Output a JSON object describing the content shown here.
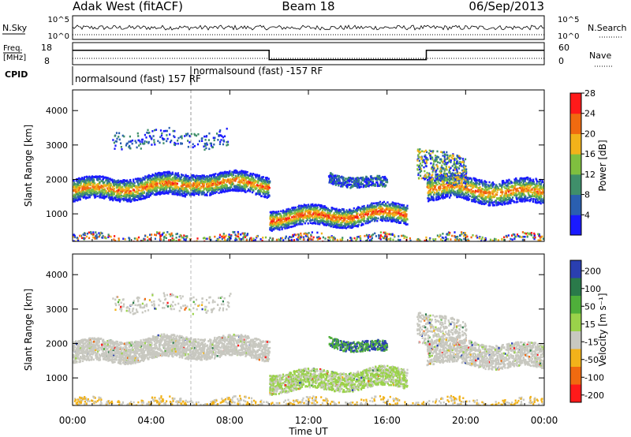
{
  "header": {
    "station": "Adak West (fitACF)",
    "beam": "Beam 18",
    "date": "06/Sep/2013"
  },
  "status_panels": {
    "nsky_label": "N.Sky",
    "nsky_ticks": [
      "10^5",
      "10^0"
    ],
    "nsearch_label": "N.Search",
    "nsearch_ticks": [
      "10^5",
      "10^0"
    ],
    "freq_label_1": "Freq.",
    "freq_label_2": "[MHz]",
    "freq_ticks": [
      "18",
      "8"
    ],
    "nave_label": "Nave",
    "nave_ticks": [
      "60",
      "0"
    ],
    "cpid_label": "CPID",
    "cpid_segments": [
      {
        "text": "normalsound (fast) 157 RF",
        "start_hour": 0
      },
      {
        "text": "normalsound (fast) -157 RF",
        "start_hour": 6
      }
    ],
    "freq_profile": [
      {
        "hour": 0,
        "value": 14.5
      },
      {
        "hour": 10,
        "value": 14.5
      },
      {
        "hour": 10,
        "value": 10.3
      },
      {
        "hour": 18,
        "value": 10.3
      },
      {
        "hour": 18,
        "value": 14.5
      },
      {
        "hour": 24,
        "value": 14.5
      }
    ]
  },
  "chart_data": [
    {
      "type": "heatmap",
      "name": "power",
      "ylabel": "Slant Range [km]",
      "yticks": [
        "1000",
        "2000",
        "3000",
        "4000"
      ],
      "ylim": [
        200,
        4600
      ],
      "xlim": [
        0,
        24
      ],
      "colorbar_label": "Power [dB]",
      "colorbar_ticks": [
        "4",
        "8",
        "12",
        "16",
        "20",
        "24",
        "28"
      ],
      "colorbar_colors": [
        "#1a1aff",
        "#2a5fb0",
        "#3f8f6a",
        "#7fbf3f",
        "#f2b21a",
        "#f06a10",
        "#ff1a1a"
      ],
      "features": [
        {
          "hours": [
            0,
            6
          ],
          "range_km": [
            1400,
            2100
          ],
          "peak_db": 24
        },
        {
          "hours": [
            6,
            10
          ],
          "range_km": [
            1600,
            2400
          ],
          "peak_db": 22
        },
        {
          "hours": [
            10,
            17
          ],
          "range_km": [
            600,
            1300
          ],
          "peak_db": 26
        },
        {
          "hours": [
            18,
            24
          ],
          "range_km": [
            1300,
            2300
          ],
          "peak_db": 20
        }
      ]
    },
    {
      "type": "heatmap",
      "name": "velocity",
      "ylabel": "Slant Range [km]",
      "yticks": [
        "1000",
        "2000",
        "3000",
        "4000"
      ],
      "ylim": [
        200,
        4600
      ],
      "xlim": [
        0,
        24
      ],
      "xticks": [
        "00:00",
        "04:00",
        "08:00",
        "12:00",
        "16:00",
        "20:00",
        "00:00"
      ],
      "xlabel": "Time UT",
      "colorbar_label": "Velocity [m s⁻¹]",
      "colorbar_ticks": [
        "200",
        "100",
        "50",
        "15",
        "-15",
        "-50",
        "-100",
        "-200"
      ],
      "colorbar_colors": [
        "#2a3fb0",
        "#2a7a4a",
        "#4faf3a",
        "#9ad24a",
        "#c8c8c0",
        "#f2b21a",
        "#f06a10",
        "#ff1a1a"
      ]
    }
  ]
}
